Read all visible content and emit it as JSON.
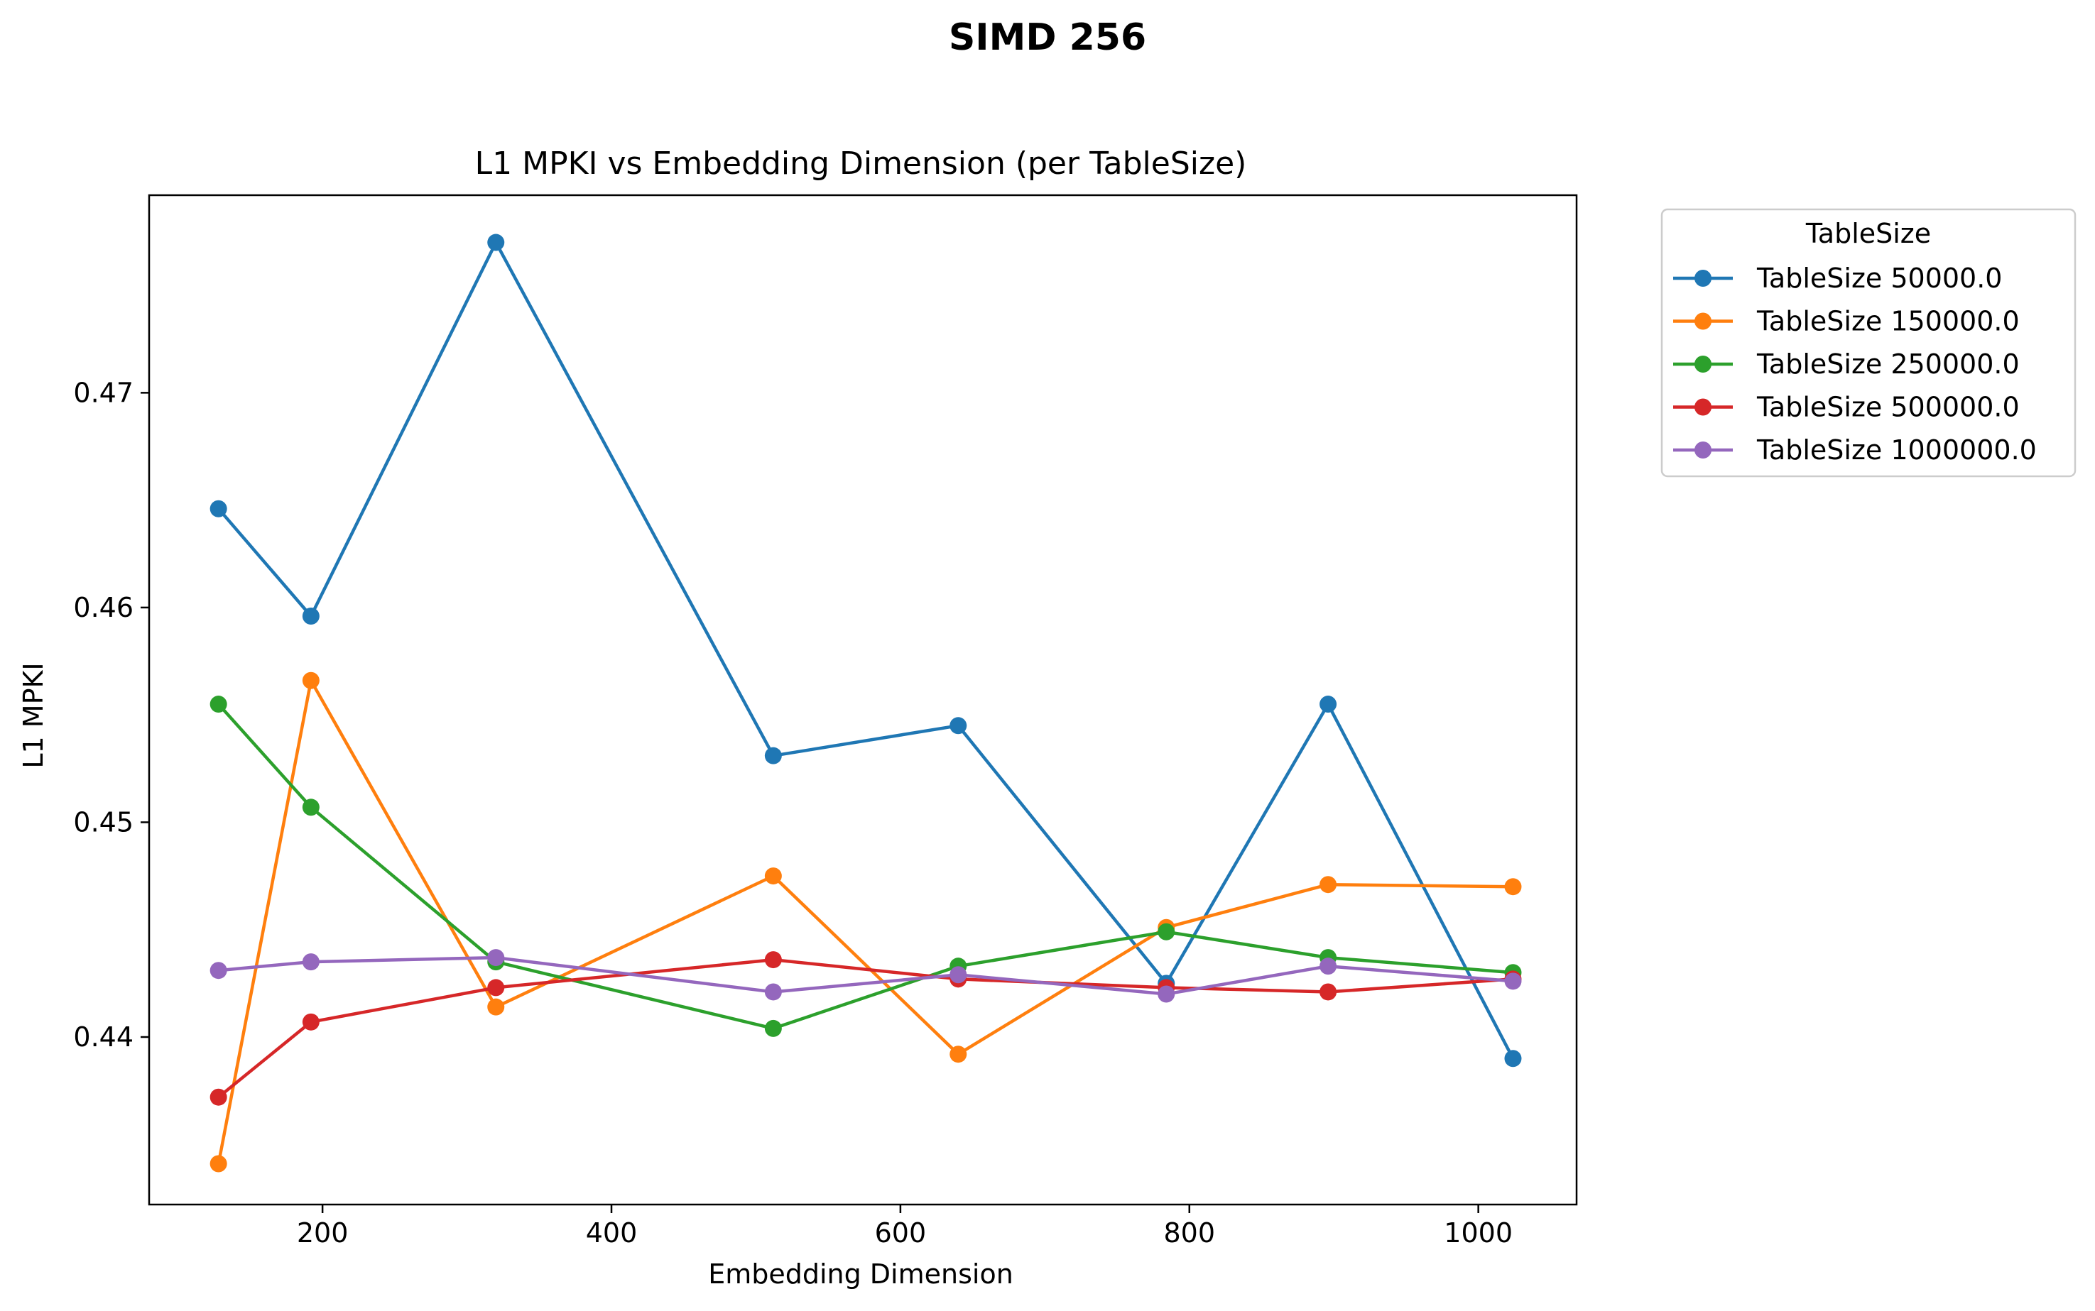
{
  "figure": {
    "suptitle": "SIMD 256"
  },
  "chart_data": {
    "type": "line",
    "title": "L1 MPKI vs Embedding Dimension (per TableSize)",
    "xlabel": "Embedding Dimension",
    "ylabel": "L1 MPKI",
    "xlim": [
      80,
      1068
    ],
    "ylim": [
      0.4322,
      0.4792
    ],
    "xticks": [
      200,
      400,
      600,
      800,
      1000
    ],
    "yticks": [
      0.44,
      0.45,
      0.46,
      0.47
    ],
    "xtick_labels": [
      "200",
      "400",
      "600",
      "800",
      "1000"
    ],
    "ytick_labels": [
      "0.44",
      "0.45",
      "0.46",
      "0.47"
    ],
    "grid": false,
    "legend": {
      "title": "TableSize",
      "placement": "outside-upper-right"
    },
    "x": [
      128,
      192,
      320,
      512,
      640,
      784,
      896,
      1024
    ],
    "series": [
      {
        "name": "TableSize 50000.0",
        "color": "#1f77b4",
        "values": [
          0.4646,
          0.4596,
          0.477,
          0.4531,
          0.4545,
          0.4425,
          0.4555,
          0.439
        ]
      },
      {
        "name": "TableSize 150000.0",
        "color": "#ff7f0e",
        "values": [
          0.4341,
          0.4566,
          0.4414,
          0.4475,
          0.4392,
          0.4451,
          0.4471,
          0.447
        ]
      },
      {
        "name": "TableSize 250000.0",
        "color": "#2ca02c",
        "values": [
          0.4555,
          0.4507,
          0.4435,
          0.4404,
          0.4433,
          0.4449,
          0.4437,
          0.443
        ]
      },
      {
        "name": "TableSize 500000.0",
        "color": "#d62728",
        "values": [
          0.4372,
          0.4407,
          0.4423,
          0.4436,
          0.4427,
          0.4423,
          0.4421,
          0.4427
        ]
      },
      {
        "name": "TableSize 1000000.0",
        "color": "#9467bd",
        "values": [
          0.4431,
          0.4435,
          0.4437,
          0.4421,
          0.4429,
          0.442,
          0.4433,
          0.4426
        ]
      }
    ]
  }
}
